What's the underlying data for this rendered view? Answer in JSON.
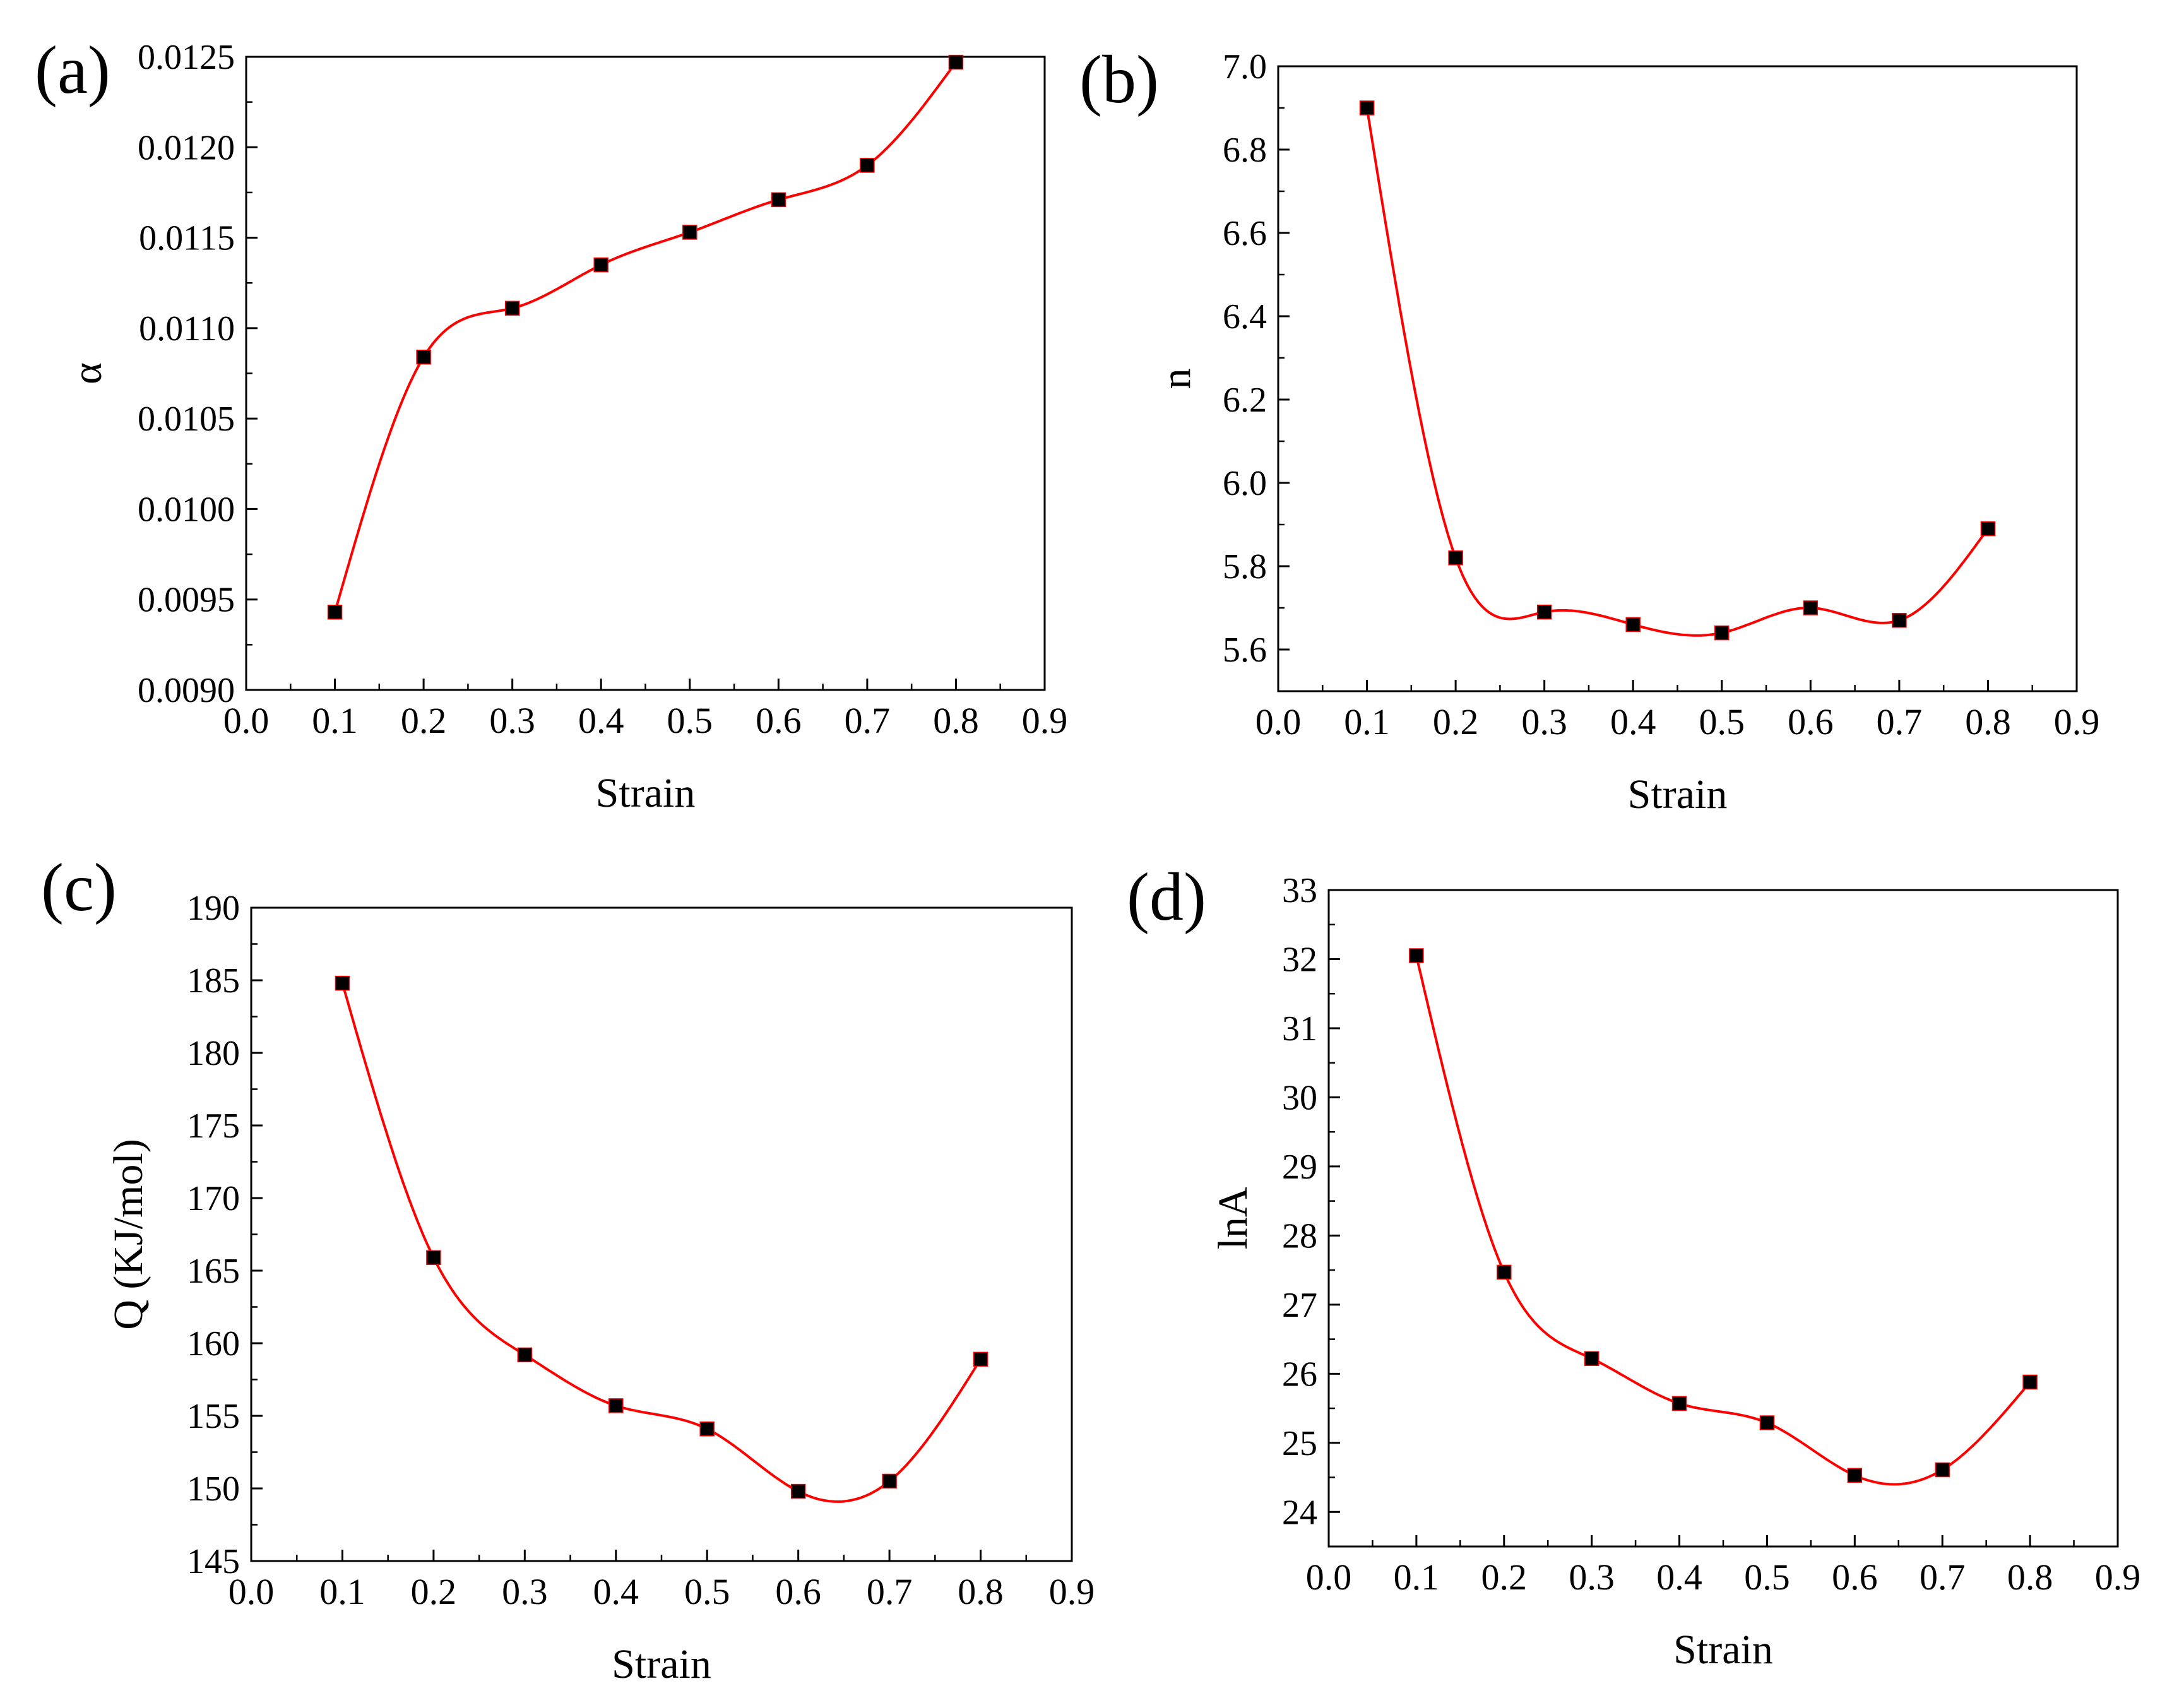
{
  "figure": {
    "colors": {
      "curve": "#ff0000",
      "marker": "#000000",
      "axis": "#000000",
      "background": "#ffffff"
    }
  },
  "chart_data": [
    {
      "type": "line",
      "panel_label": "(a)",
      "title": "",
      "xlabel": "Strain",
      "ylabel": "α",
      "xlim": [
        0.0,
        0.9
      ],
      "ylim": [
        0.009,
        0.0125
      ],
      "xticks": [
        "0.0",
        "0.1",
        "0.2",
        "0.3",
        "0.4",
        "0.5",
        "0.6",
        "0.7",
        "0.8",
        "0.9"
      ],
      "yticks": [
        "0.0090",
        "0.0095",
        "0.0100",
        "0.0105",
        "0.0110",
        "0.0115",
        "0.0120",
        "0.0125"
      ],
      "grid": false,
      "series": [
        {
          "name": "α",
          "x": [
            0.1,
            0.2,
            0.3,
            0.4,
            0.5,
            0.6,
            0.7,
            0.8
          ],
          "values": [
            0.00943,
            0.01084,
            0.01111,
            0.01135,
            0.01153,
            0.01171,
            0.0119,
            0.01247
          ]
        }
      ]
    },
    {
      "type": "line",
      "panel_label": "(b)",
      "title": "",
      "xlabel": "Strain",
      "ylabel": "n",
      "xlim": [
        0.0,
        0.9
      ],
      "ylim": [
        5.5,
        7.0
      ],
      "xticks": [
        "0.0",
        "0.1",
        "0.2",
        "0.3",
        "0.4",
        "0.5",
        "0.6",
        "0.7",
        "0.8",
        "0.9"
      ],
      "yticks": [
        "5.6",
        "5.8",
        "6.0",
        "6.2",
        "6.4",
        "6.6",
        "6.8",
        "7.0"
      ],
      "grid": false,
      "series": [
        {
          "name": "n",
          "x": [
            0.1,
            0.2,
            0.3,
            0.4,
            0.5,
            0.6,
            0.7,
            0.8
          ],
          "values": [
            6.9,
            5.82,
            5.69,
            5.66,
            5.64,
            5.7,
            5.67,
            5.89
          ]
        }
      ]
    },
    {
      "type": "line",
      "panel_label": "(c)",
      "title": "",
      "xlabel": "Strain",
      "ylabel": "Q (KJ/mol)",
      "xlim": [
        0.0,
        0.9
      ],
      "ylim": [
        145,
        190
      ],
      "xticks": [
        "0.0",
        "0.1",
        "0.2",
        "0.3",
        "0.4",
        "0.5",
        "0.6",
        "0.7",
        "0.8",
        "0.9"
      ],
      "yticks": [
        "145",
        "150",
        "155",
        "160",
        "165",
        "170",
        "175",
        "180",
        "185",
        "190"
      ],
      "grid": false,
      "series": [
        {
          "name": "Q",
          "x": [
            0.1,
            0.2,
            0.3,
            0.4,
            0.5,
            0.6,
            0.7,
            0.8
          ],
          "values": [
            184.8,
            165.9,
            159.2,
            155.7,
            154.1,
            149.8,
            150.5,
            158.9
          ]
        }
      ]
    },
    {
      "type": "line",
      "panel_label": "(d)",
      "title": "",
      "xlabel": "Strain",
      "ylabel": "lnA",
      "xlim": [
        0.0,
        0.9
      ],
      "ylim": [
        23.5,
        33
      ],
      "xticks": [
        "0.0",
        "0.1",
        "0.2",
        "0.3",
        "0.4",
        "0.5",
        "0.6",
        "0.7",
        "0.8",
        "0.9"
      ],
      "yticks": [
        "24",
        "25",
        "26",
        "27",
        "28",
        "29",
        "30",
        "31",
        "32",
        "33"
      ],
      "grid": false,
      "series": [
        {
          "name": "lnA",
          "x": [
            0.1,
            0.2,
            0.3,
            0.4,
            0.5,
            0.6,
            0.7,
            0.8
          ],
          "values": [
            32.05,
            27.47,
            26.22,
            25.57,
            25.29,
            24.53,
            24.61,
            25.88
          ]
        }
      ]
    }
  ]
}
